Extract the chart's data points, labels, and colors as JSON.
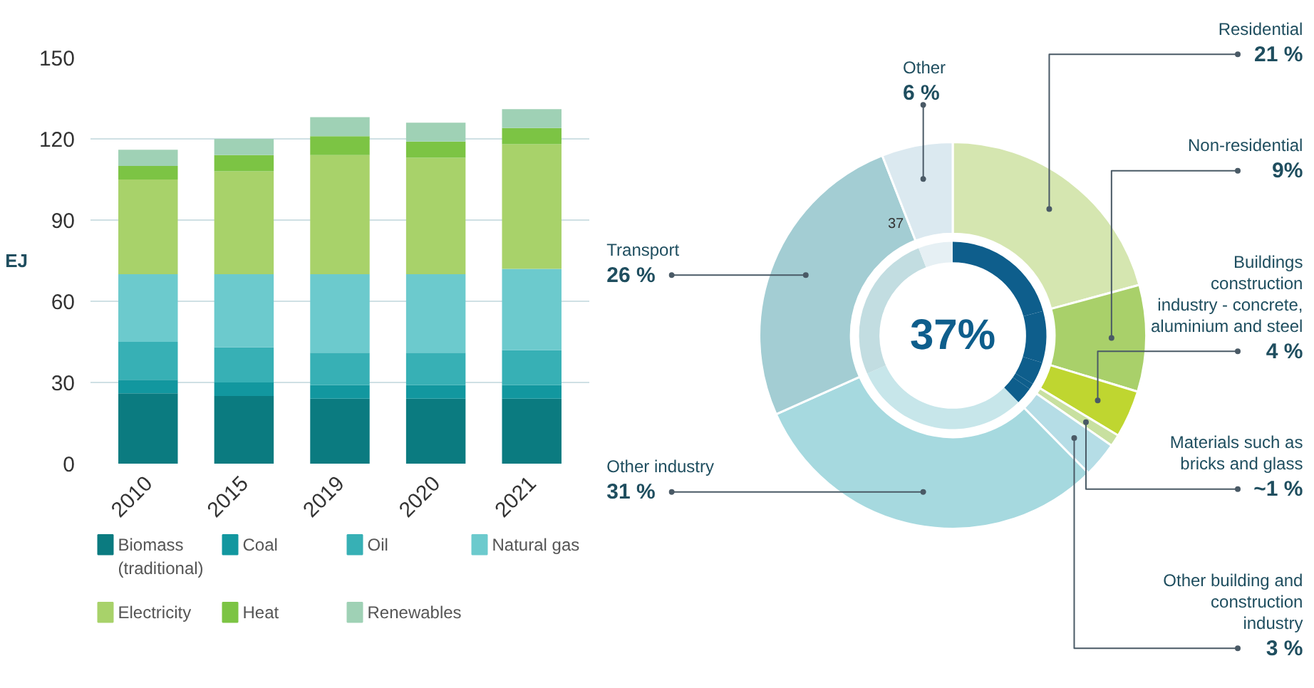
{
  "chart_data": [
    {
      "type": "bar",
      "stacked": true,
      "ylabel": "EJ",
      "categories": [
        "2010",
        "2015",
        "2019",
        "2020",
        "2021"
      ],
      "ylim": [
        0,
        150
      ],
      "yticks": [
        0,
        30,
        60,
        90,
        120,
        150
      ],
      "grid": "y",
      "legend": "bottom",
      "series": [
        {
          "name": "Biomass (traditional)",
          "color": "#0b7b80",
          "values": [
            26,
            25,
            24,
            24,
            24
          ]
        },
        {
          "name": "Coal",
          "color": "#12979f",
          "values": [
            5,
            5,
            5,
            5,
            5
          ]
        },
        {
          "name": "Oil",
          "color": "#37b0b5",
          "values": [
            14,
            13,
            12,
            12,
            13
          ]
        },
        {
          "name": "Natural gas",
          "color": "#6ccacd",
          "values": [
            25,
            27,
            29,
            29,
            30
          ]
        },
        {
          "name": "Electricity",
          "color": "#a8d26a",
          "values": [
            35,
            38,
            44,
            43,
            46
          ]
        },
        {
          "name": "Heat",
          "color": "#7cc444",
          "values": [
            5,
            6,
            7,
            6,
            6
          ]
        },
        {
          "name": "Renewables",
          "color": "#9fd1b5",
          "values": [
            6,
            6,
            7,
            7,
            7
          ]
        }
      ]
    },
    {
      "type": "donut",
      "categories": [
        "Residential",
        "Non-residential",
        "Buildings construction industry - concrete, aluminium and steel",
        "Materials such as bricks and glass",
        "Other building and construction industry",
        "Other industry",
        "Transport",
        "Other"
      ],
      "values": [
        21,
        9,
        4,
        1,
        3,
        31,
        26,
        6
      ],
      "value_labels": [
        "21 %",
        "9%",
        "4 %",
        "~1 %",
        "3 %",
        "31 %",
        "26 %",
        "6 %"
      ],
      "colors": [
        "#d5e6b0",
        "#a9d06a",
        "#bfd630",
        "#c8e0a0",
        "#b5dde6",
        "#a6d9df",
        "#a3cdd3",
        "#dbe9f0"
      ],
      "series": [
        {
          "values": [
            21,
            9,
            4,
            1,
            3,
            31,
            26,
            6
          ],
          "colors": [
            "#0e5e8c",
            "#0e5e8c",
            "#0e5e8c",
            "#0e5e8c",
            "#0e5e8c",
            "#c7e6ea",
            "#c2dde1",
            "#e6f0f4"
          ]
        }
      ],
      "annotations": [
        "37%",
        "37"
      ]
    }
  ]
}
